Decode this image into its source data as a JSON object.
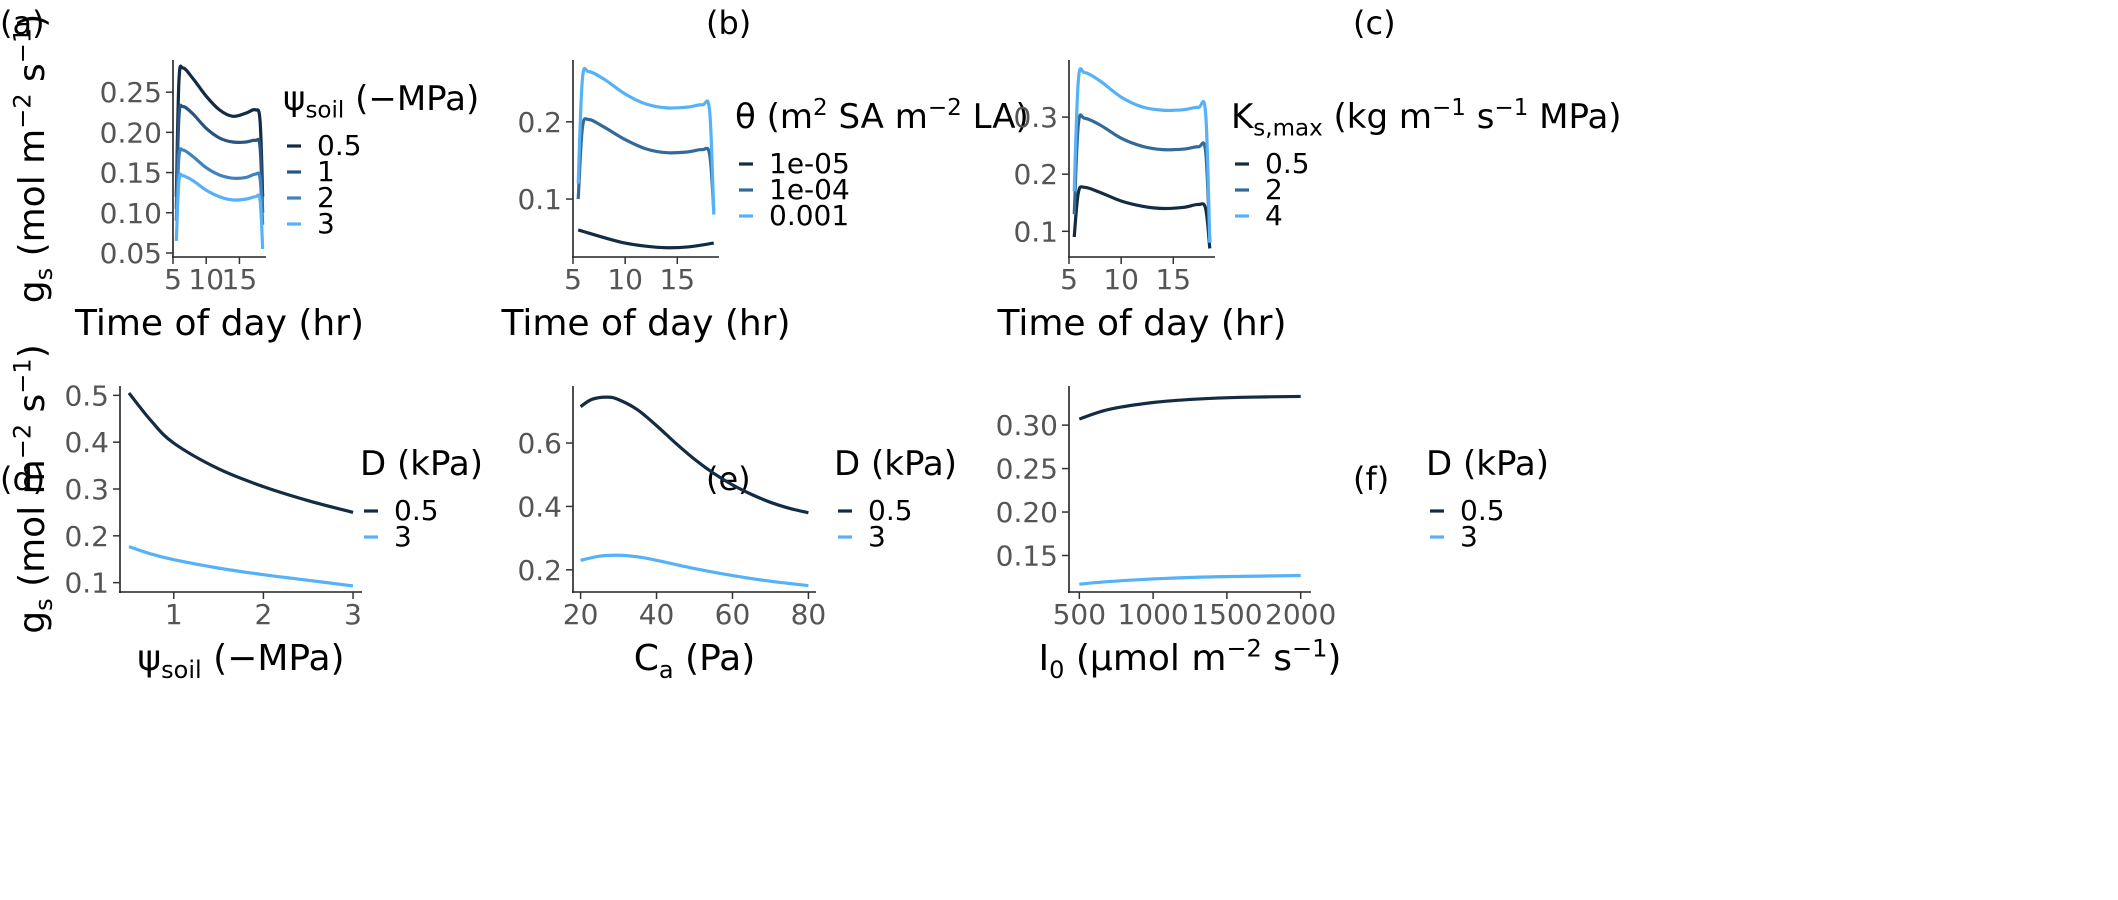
{
  "panels": [
    {
      "label": "(a)"
    },
    {
      "label": "(b)"
    },
    {
      "label": "(c)"
    },
    {
      "label": "(d)"
    },
    {
      "label": "(e)"
    },
    {
      "label": "(f)"
    }
  ],
  "colors": {
    "dark": "#132b43",
    "mid": "#336a98",
    "light": "#56b1f7"
  },
  "chart_data": [
    {
      "type": "line",
      "panel": "(a)",
      "xlabel": "Time of day (hr)",
      "ylabel": "g_s (mol m^-2 s^-1)",
      "x_ticks": [
        5,
        10,
        15
      ],
      "y_ticks": [
        0.05,
        0.1,
        0.15,
        0.2,
        0.25
      ],
      "xlim": [
        5,
        19
      ],
      "ylim": [
        0.045,
        0.29
      ],
      "legend_title": "ψ_soil (−MPa)",
      "series": [
        {
          "name": "0.5",
          "color": "#132b43",
          "x": [
            5.5,
            5.9,
            6.5,
            8,
            10,
            12,
            14,
            16,
            17.4,
            18.1,
            18.5
          ],
          "y": [
            0.12,
            0.265,
            0.28,
            0.267,
            0.245,
            0.228,
            0.22,
            0.224,
            0.228,
            0.215,
            0.12
          ]
        },
        {
          "name": "1",
          "color": "#29547f",
          "x": [
            5.5,
            5.9,
            6.5,
            8,
            10,
            12,
            14,
            16,
            17.4,
            18.1,
            18.5
          ],
          "y": [
            0.105,
            0.22,
            0.232,
            0.223,
            0.205,
            0.193,
            0.188,
            0.188,
            0.19,
            0.182,
            0.1
          ]
        },
        {
          "name": "2",
          "color": "#3f82bd",
          "x": [
            5.5,
            5.9,
            6.5,
            8,
            10,
            12,
            14,
            16,
            17.4,
            18.1,
            18.5
          ],
          "y": [
            0.09,
            0.17,
            0.178,
            0.17,
            0.156,
            0.147,
            0.143,
            0.144,
            0.148,
            0.143,
            0.085
          ]
        },
        {
          "name": "3",
          "color": "#56b1f7",
          "x": [
            5.5,
            5.9,
            6.5,
            8,
            10,
            12,
            14,
            16,
            17.4,
            18.1,
            18.5
          ],
          "y": [
            0.065,
            0.14,
            0.146,
            0.14,
            0.128,
            0.12,
            0.116,
            0.117,
            0.12,
            0.116,
            0.055
          ]
        }
      ]
    },
    {
      "type": "line",
      "panel": "(b)",
      "xlabel": "Time of day (hr)",
      "ylabel": "",
      "x_ticks": [
        5,
        10,
        15
      ],
      "y_ticks": [
        0.1,
        0.2
      ],
      "xlim": [
        5,
        19
      ],
      "ylim": [
        0.025,
        0.28
      ],
      "legend_title": "θ (m^2 SA m^-2 LA)",
      "series": [
        {
          "name": "1e-05",
          "color": "#132b43",
          "x": [
            5.5,
            6,
            8,
            10,
            12,
            14,
            16,
            18.5
          ],
          "y": [
            0.06,
            0.058,
            0.05,
            0.043,
            0.039,
            0.037,
            0.038,
            0.043
          ]
        },
        {
          "name": "1e-04",
          "color": "#336a98",
          "x": [
            5.5,
            5.9,
            6.5,
            8,
            10,
            12,
            14,
            16,
            17.4,
            18.1,
            18.5
          ],
          "y": [
            0.1,
            0.192,
            0.203,
            0.193,
            0.177,
            0.165,
            0.16,
            0.161,
            0.164,
            0.158,
            0.085
          ]
        },
        {
          "name": "0.001",
          "color": "#56b1f7",
          "x": [
            5.5,
            5.9,
            6.5,
            8,
            10,
            12,
            14,
            16,
            17.4,
            18.1,
            18.5
          ],
          "y": [
            0.12,
            0.255,
            0.265,
            0.255,
            0.236,
            0.223,
            0.218,
            0.219,
            0.222,
            0.214,
            0.08
          ]
        }
      ]
    },
    {
      "type": "line",
      "panel": "(c)",
      "xlabel": "Time of day (hr)",
      "ylabel": "",
      "x_ticks": [
        5,
        10,
        15
      ],
      "y_ticks": [
        0.1,
        0.2,
        0.3
      ],
      "xlim": [
        5,
        19
      ],
      "ylim": [
        0.055,
        0.4
      ],
      "legend_title": "K_s,max (kg m^-1 s^-1 MPa)",
      "series": [
        {
          "name": "0.5",
          "color": "#132b43",
          "x": [
            5.5,
            5.9,
            6.5,
            8,
            10,
            12,
            14,
            16,
            17.4,
            18.1,
            18.5
          ],
          "y": [
            0.09,
            0.168,
            0.177,
            0.168,
            0.153,
            0.144,
            0.14,
            0.142,
            0.147,
            0.14,
            0.07
          ]
        },
        {
          "name": "2",
          "color": "#336a98",
          "x": [
            5.5,
            5.9,
            6.5,
            8,
            10,
            12,
            14,
            16,
            17.4,
            18.1,
            18.5
          ],
          "y": [
            0.13,
            0.288,
            0.298,
            0.286,
            0.263,
            0.249,
            0.243,
            0.244,
            0.248,
            0.24,
            0.08
          ]
        },
        {
          "name": "4",
          "color": "#56b1f7",
          "x": [
            5.5,
            5.9,
            6.5,
            8,
            10,
            12,
            14,
            16,
            17.4,
            18.1,
            18.5
          ],
          "y": [
            0.17,
            0.365,
            0.378,
            0.363,
            0.335,
            0.318,
            0.312,
            0.313,
            0.317,
            0.307,
            0.08
          ]
        }
      ]
    },
    {
      "type": "line",
      "panel": "(d)",
      "xlabel": "ψ_soil (−MPa)",
      "ylabel": "g_s (mol m^-2 s^-1)",
      "x_ticks": [
        1,
        2,
        3
      ],
      "y_ticks": [
        0.1,
        0.2,
        0.3,
        0.4,
        0.5
      ],
      "xlim": [
        0.4,
        3.1
      ],
      "ylim": [
        0.08,
        0.52
      ],
      "legend_title": "D (kPa)",
      "series": [
        {
          "name": "0.5",
          "color": "#132b43",
          "x": [
            0.5,
            0.75,
            1,
            1.5,
            2,
            2.5,
            3
          ],
          "y": [
            0.505,
            0.445,
            0.398,
            0.343,
            0.305,
            0.275,
            0.25
          ]
        },
        {
          "name": "3",
          "color": "#56b1f7",
          "x": [
            0.5,
            0.75,
            1,
            1.5,
            2,
            2.5,
            3
          ],
          "y": [
            0.177,
            0.161,
            0.149,
            0.131,
            0.117,
            0.105,
            0.093
          ]
        }
      ]
    },
    {
      "type": "line",
      "panel": "(e)",
      "xlabel": "C_a (Pa)",
      "ylabel": "",
      "x_ticks": [
        20,
        40,
        60,
        80
      ],
      "y_ticks": [
        0.2,
        0.4,
        0.6
      ],
      "xlim": [
        18,
        82
      ],
      "ylim": [
        0.13,
        0.78
      ],
      "legend_title": "D (kPa)",
      "series": [
        {
          "name": "0.5",
          "color": "#132b43",
          "x": [
            20,
            23,
            27,
            30,
            35,
            40,
            45,
            50,
            55,
            60,
            65,
            70,
            75,
            80
          ],
          "y": [
            0.715,
            0.738,
            0.745,
            0.737,
            0.705,
            0.655,
            0.6,
            0.549,
            0.505,
            0.468,
            0.438,
            0.413,
            0.394,
            0.38
          ]
        },
        {
          "name": "3",
          "color": "#56b1f7",
          "x": [
            20,
            25,
            30,
            35,
            40,
            50,
            60,
            70,
            80
          ],
          "y": [
            0.23,
            0.243,
            0.246,
            0.241,
            0.23,
            0.204,
            0.182,
            0.164,
            0.15
          ]
        }
      ]
    },
    {
      "type": "line",
      "panel": "(f)",
      "xlabel": "I_0 (μmol m^-2 s^-1)",
      "ylabel": "",
      "x_ticks": [
        500,
        1000,
        1500,
        2000
      ],
      "y_ticks": [
        0.15,
        0.2,
        0.25,
        0.3
      ],
      "xlim": [
        430,
        2070
      ],
      "ylim": [
        0.108,
        0.345
      ],
      "legend_title": "D (kPa)",
      "series": [
        {
          "name": "0.5",
          "color": "#132b43",
          "x": [
            500,
            700,
            1000,
            1300,
            1600,
            2000
          ],
          "y": [
            0.307,
            0.318,
            0.326,
            0.33,
            0.332,
            0.333
          ]
        },
        {
          "name": "3",
          "color": "#56b1f7",
          "x": [
            500,
            700,
            1000,
            1300,
            1600,
            2000
          ],
          "y": [
            0.117,
            0.12,
            0.123,
            0.125,
            0.126,
            0.127
          ]
        }
      ]
    }
  ]
}
